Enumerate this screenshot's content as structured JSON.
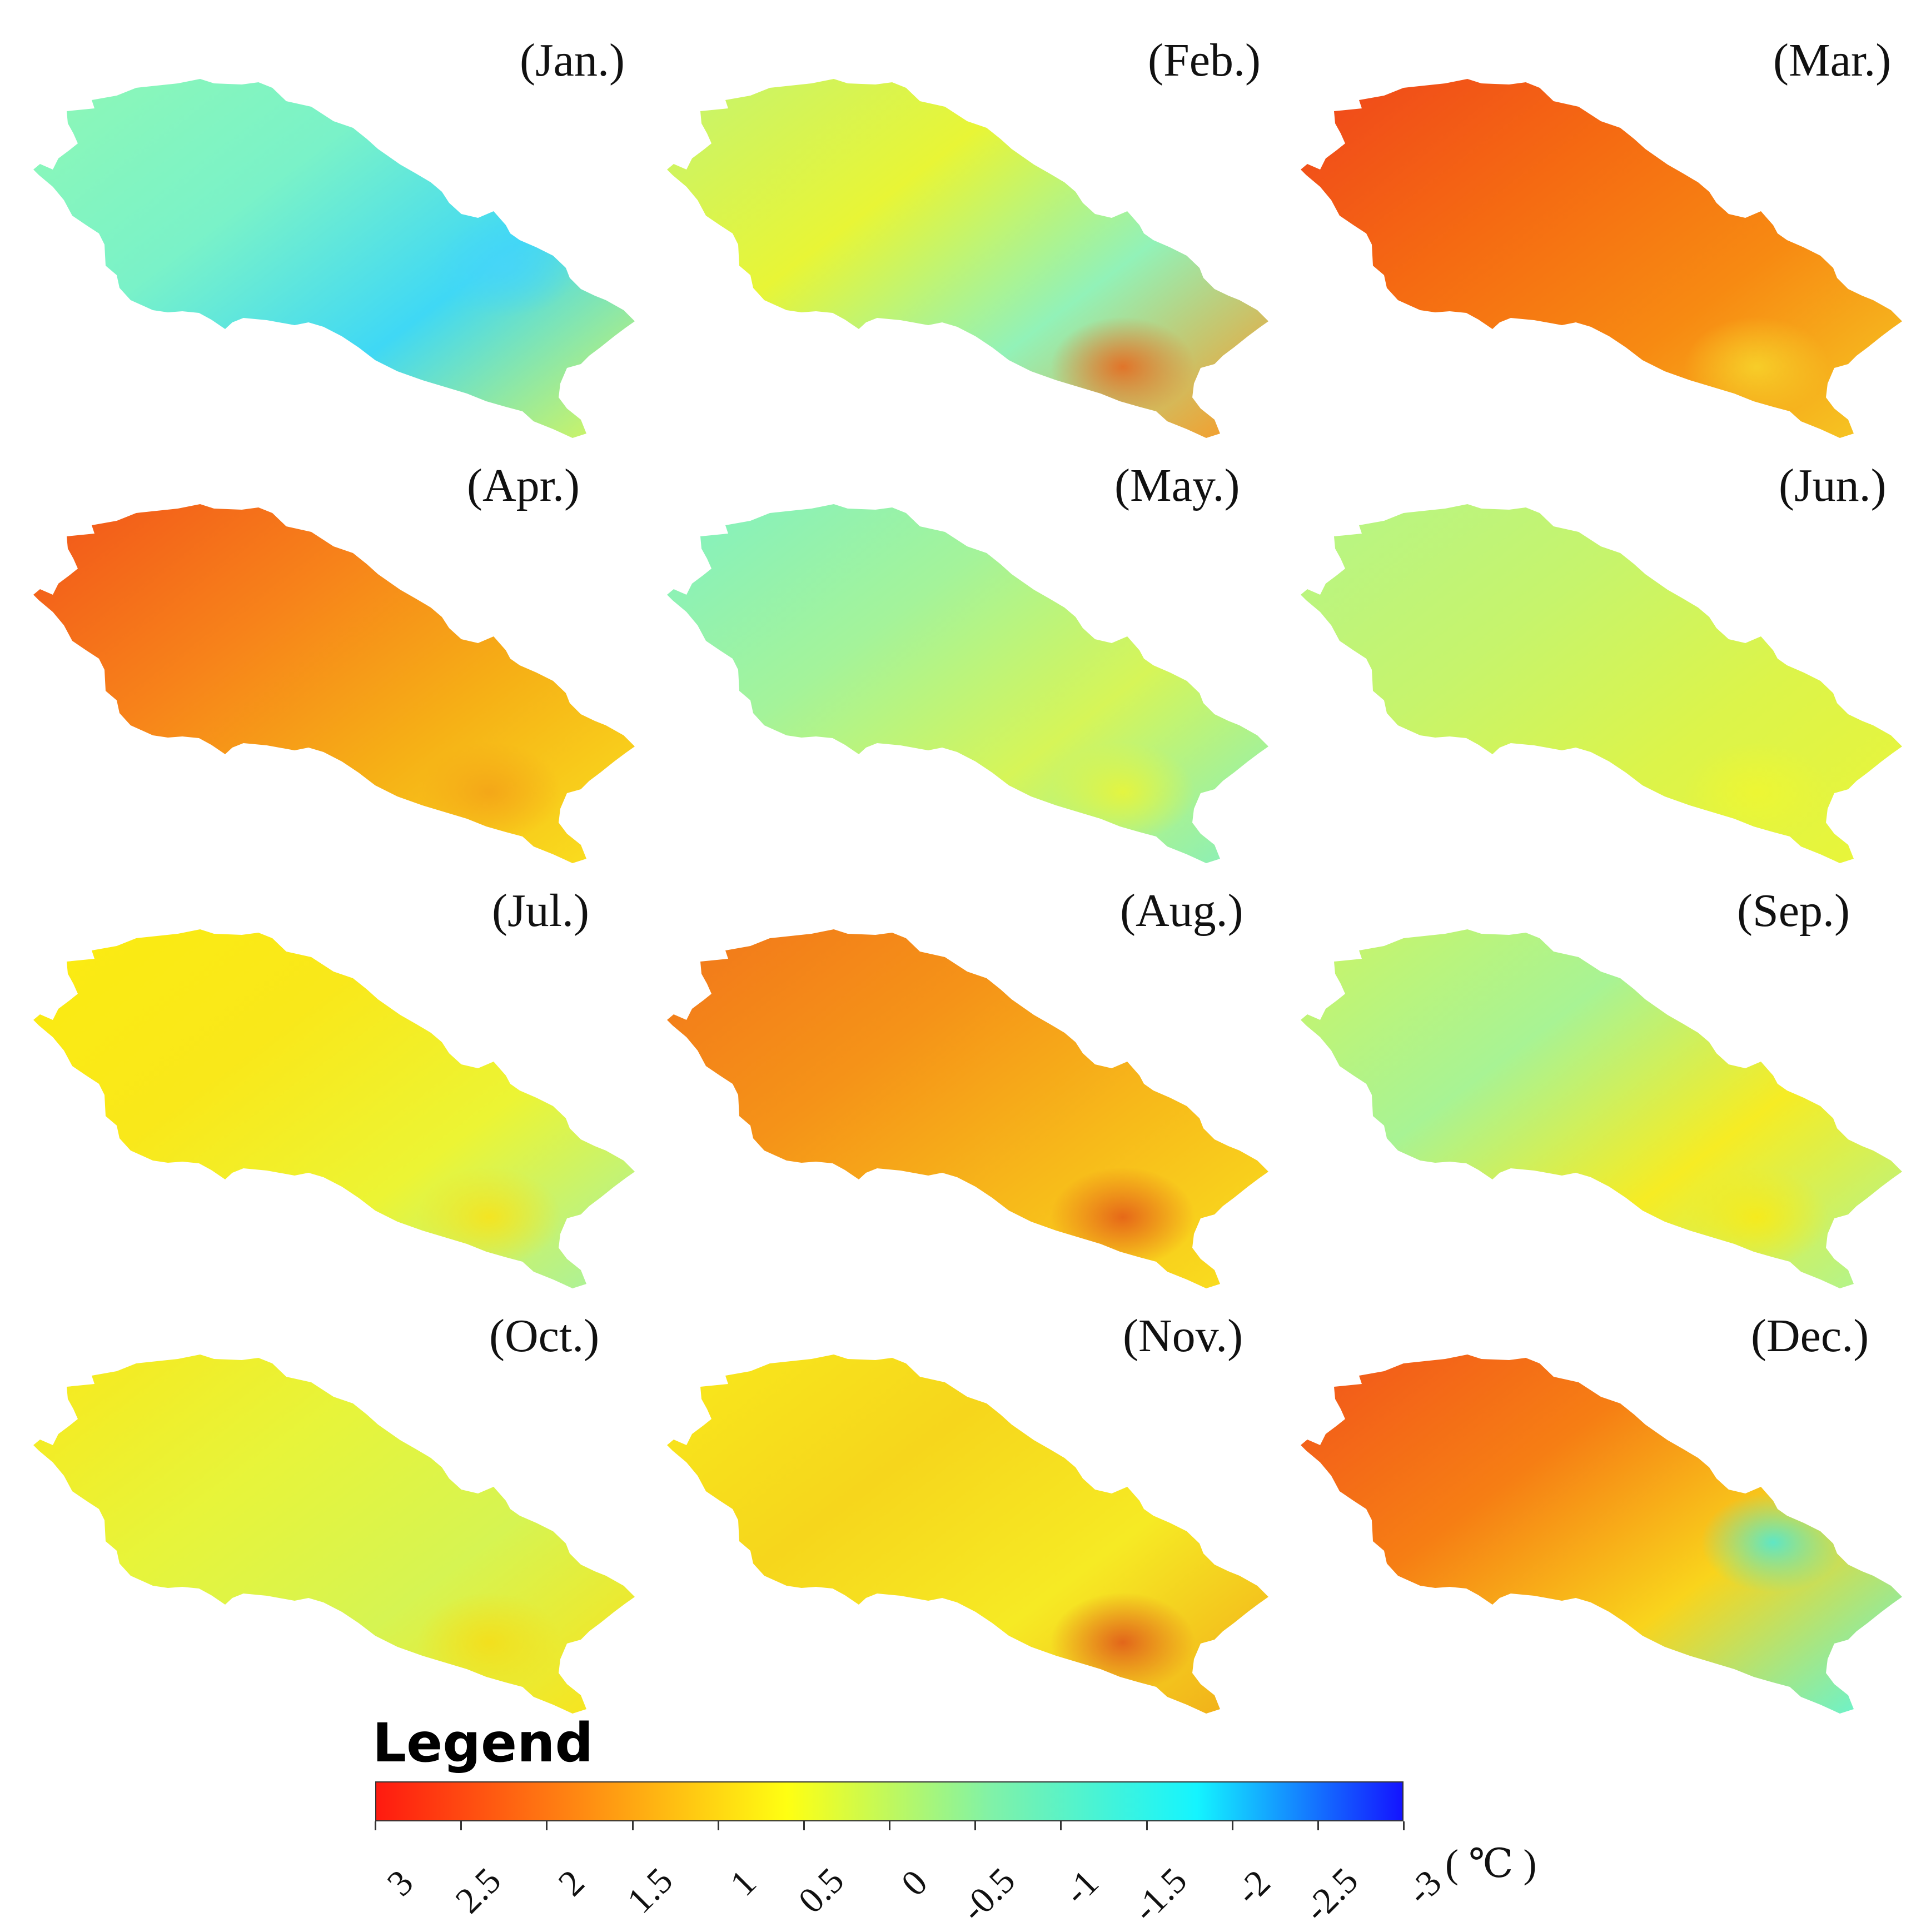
{
  "panels": [
    {
      "label": "(Jan.)",
      "palette": [
        "#8cf7b8",
        "#7af2c8",
        "#3fd8f5",
        "#c9f36a"
      ],
      "hot": "#47d5f8"
    },
    {
      "label": "(Feb.)",
      "palette": [
        "#c8f46a",
        "#e8f536",
        "#92f2b8",
        "#f2a030"
      ],
      "hot": "#e56a20"
    },
    {
      "label": "(Mar.)",
      "palette": [
        "#f04a1a",
        "#f56a12",
        "#f78a12",
        "#f6c422"
      ],
      "hot": "#f7d22a"
    },
    {
      "label": "(Apr.)",
      "palette": [
        "#f25a1a",
        "#f7821a",
        "#f6b016",
        "#f9dc1e"
      ],
      "hot": "#f4a418"
    },
    {
      "label": "(May.)",
      "palette": [
        "#86f2bd",
        "#a4f39a",
        "#d6f558",
        "#8ef0b4"
      ],
      "hot": "#e8f53a"
    },
    {
      "label": "(Jun.)",
      "palette": [
        "#b8f584",
        "#c6f46c",
        "#dcf44a",
        "#e8f53a"
      ],
      "hot": "#eef632"
    },
    {
      "label": "(Jul.)",
      "palette": [
        "#fbeb12",
        "#f9e81a",
        "#ecf434",
        "#aef296"
      ],
      "hot": "#f7e31c"
    },
    {
      "label": "(Aug.)",
      "palette": [
        "#f27a1a",
        "#f59318",
        "#f7b91a",
        "#f9dc1e"
      ],
      "hot": "#e45e18"
    },
    {
      "label": "(Sep.)",
      "palette": [
        "#c6f46c",
        "#a8f394",
        "#f6ec24",
        "#b4f48a"
      ],
      "hot": "#f8ea18"
    },
    {
      "label": "(Oct.)",
      "palette": [
        "#f6ea20",
        "#e7f43a",
        "#d6f452",
        "#f6e520"
      ],
      "hot": "#f4de1a"
    },
    {
      "label": "(Nov.)",
      "palette": [
        "#f8e61c",
        "#f6d61c",
        "#f6ea24",
        "#f2b21a"
      ],
      "hot": "#e05a1a"
    },
    {
      "label": "(Dec.)",
      "palette": [
        "#f25a1a",
        "#f67e14",
        "#f9d41c",
        "#6ff2c8"
      ],
      "hot": "#4fe8d6"
    }
  ],
  "legend": {
    "title": "Legend",
    "ticks": [
      "3",
      "2.5",
      "2",
      "1.5",
      "1",
      "0.5",
      "0",
      "-0.5",
      "-1",
      "-1.5",
      "-2",
      "-2.5",
      "-3"
    ],
    "range": [
      3,
      -3
    ],
    "unit": "( ℃ )",
    "colors": [
      "#ff1a10",
      "#ff8a12",
      "#ffff12",
      "#80f2a8",
      "#14f4ff",
      "#1414ff"
    ]
  }
}
